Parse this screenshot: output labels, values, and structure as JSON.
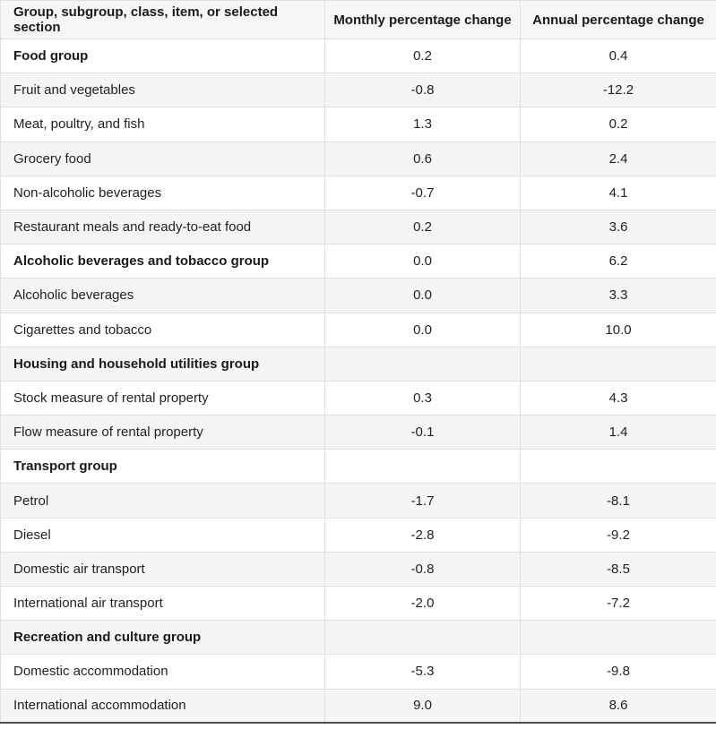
{
  "table": {
    "columns": [
      {
        "label": "Group, subgroup, class, item, or selected section"
      },
      {
        "label": "Monthly percentage change"
      },
      {
        "label": "Annual percentage change"
      }
    ],
    "rows": [
      {
        "label": "Food group",
        "monthly": "0.2",
        "annual": "0.4",
        "bold": true
      },
      {
        "label": "Fruit and vegetables",
        "monthly": "-0.8",
        "annual": "-12.2",
        "bold": false
      },
      {
        "label": "Meat, poultry, and fish",
        "monthly": "1.3",
        "annual": "0.2",
        "bold": false
      },
      {
        "label": "Grocery food",
        "monthly": "0.6",
        "annual": "2.4",
        "bold": false
      },
      {
        "label": "Non-alcoholic beverages",
        "monthly": "-0.7",
        "annual": "4.1",
        "bold": false
      },
      {
        "label": "Restaurant meals and ready-to-eat food",
        "monthly": "0.2",
        "annual": "3.6",
        "bold": false
      },
      {
        "label": "Alcoholic beverages and tobacco group",
        "monthly": "0.0",
        "annual": "6.2",
        "bold": true
      },
      {
        "label": "Alcoholic beverages",
        "monthly": "0.0",
        "annual": "3.3",
        "bold": false
      },
      {
        "label": "Cigarettes and tobacco",
        "monthly": "0.0",
        "annual": "10.0",
        "bold": false
      },
      {
        "label": "Housing and household utilities group",
        "monthly": "",
        "annual": "",
        "bold": true
      },
      {
        "label": "Stock measure of rental property",
        "monthly": "0.3",
        "annual": "4.3",
        "bold": false
      },
      {
        "label": "Flow measure of rental property",
        "monthly": "-0.1",
        "annual": "1.4",
        "bold": false
      },
      {
        "label": "Transport group",
        "monthly": "",
        "annual": "",
        "bold": true
      },
      {
        "label": "Petrol",
        "monthly": "-1.7",
        "annual": "-8.1",
        "bold": false
      },
      {
        "label": "Diesel",
        "monthly": "-2.8",
        "annual": "-9.2",
        "bold": false
      },
      {
        "label": "Domestic air transport",
        "monthly": "-0.8",
        "annual": "-8.5",
        "bold": false
      },
      {
        "label": "International air transport",
        "monthly": "-2.0",
        "annual": "-7.2",
        "bold": false
      },
      {
        "label": "Recreation and culture group",
        "monthly": "",
        "annual": "",
        "bold": true
      },
      {
        "label": "Domestic accommodation",
        "monthly": "-5.3",
        "annual": "-9.8",
        "bold": false
      },
      {
        "label": "International accommodation",
        "monthly": "9.0",
        "annual": "8.6",
        "bold": false
      }
    ]
  },
  "colors": {
    "header_background": "#f6f6f6",
    "stripe_background": "#f5f5f5",
    "row_background": "#ffffff",
    "cell_border": "#e0e0e0",
    "bottom_border": "#4d4d4d",
    "text": "#222222"
  },
  "chart_data": {
    "type": "table",
    "title": "",
    "columns": [
      "Group, subgroup, class, item, or selected section",
      "Monthly percentage change",
      "Annual percentage change"
    ],
    "rows": [
      [
        "Food group",
        0.2,
        0.4
      ],
      [
        "Fruit and vegetables",
        -0.8,
        -12.2
      ],
      [
        "Meat, poultry, and fish",
        1.3,
        0.2
      ],
      [
        "Grocery food",
        0.6,
        2.4
      ],
      [
        "Non-alcoholic beverages",
        -0.7,
        4.1
      ],
      [
        "Restaurant meals and ready-to-eat food",
        0.2,
        3.6
      ],
      [
        "Alcoholic beverages and tobacco group",
        0.0,
        6.2
      ],
      [
        "Alcoholic beverages",
        0.0,
        3.3
      ],
      [
        "Cigarettes and tobacco",
        0.0,
        10.0
      ],
      [
        "Housing and household utilities group",
        null,
        null
      ],
      [
        "Stock measure of rental property",
        0.3,
        4.3
      ],
      [
        "Flow measure of rental property",
        -0.1,
        1.4
      ],
      [
        "Transport group",
        null,
        null
      ],
      [
        "Petrol",
        -1.7,
        -8.1
      ],
      [
        "Diesel",
        -2.8,
        -9.2
      ],
      [
        "Domestic air transport",
        -0.8,
        -8.5
      ],
      [
        "International air transport",
        -2.0,
        -7.2
      ],
      [
        "Recreation and culture group",
        null,
        null
      ],
      [
        "Domestic accommodation",
        -5.3,
        -9.8
      ],
      [
        "International accommodation",
        9.0,
        8.6
      ]
    ],
    "layout": {
      "zebra_striping": true,
      "group_rows_bold": [
        0,
        6,
        9,
        12,
        17
      ],
      "value_alignment": "center",
      "label_alignment": "left"
    }
  }
}
